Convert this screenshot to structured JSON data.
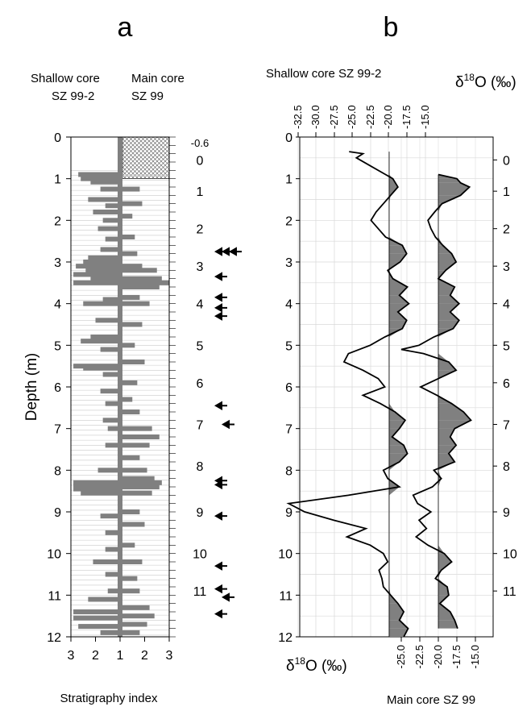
{
  "panel_a": {
    "letter": "a",
    "header_left_1": "Shallow core",
    "header_left_2": "SZ 99-2",
    "header_right_1": "Main core",
    "header_right_2": "SZ 99",
    "ylabel": "Depth (m)",
    "xlabel": "Stratigraphy index"
  },
  "panel_b": {
    "letter": "b",
    "top_title": "Shallow core SZ 99-2",
    "top_unit_delta": "δ",
    "top_unit_sup": "18",
    "top_unit_rest": "O (‰)",
    "bottom_unit_delta": "δ",
    "bottom_unit_sup": "18",
    "bottom_unit_rest": "O (‰)",
    "bottom_title": "Main core SZ 99"
  },
  "chart_data": [
    {
      "type": "bar",
      "title": "",
      "xlabel": "Stratigraphy index",
      "ylabel": "Depth (m)",
      "left_depth_ticks": [
        "0",
        "1",
        "2",
        "3",
        "4",
        "5",
        "6",
        "7",
        "8",
        "9",
        "10",
        "11",
        "12"
      ],
      "right_depth_ticks": [
        "-0.6",
        "0",
        "1",
        "2",
        "3",
        "4",
        "5",
        "6",
        "7",
        "8",
        "9",
        "10",
        "11"
      ],
      "x_ticks": [
        "3",
        "2",
        "1",
        "2",
        "3"
      ],
      "shallow_core_series": {
        "name": "SZ 99-2",
        "depth_m": [
          0.9,
          1.0,
          1.08,
          1.25,
          1.5,
          1.65,
          1.8,
          2.0,
          2.2,
          2.45,
          2.7,
          2.9,
          3.0,
          3.1,
          3.2,
          3.3,
          3.4,
          3.5,
          3.9,
          4.0,
          4.4,
          4.8,
          4.9,
          5.1,
          5.5,
          5.55,
          5.7,
          6.1,
          6.4,
          6.8,
          7.0,
          7.4,
          8.0,
          8.3,
          8.35,
          8.45,
          8.55,
          9.1,
          9.5,
          9.9,
          10.2,
          10.5,
          10.9,
          11.1,
          11.4,
          11.55,
          11.75,
          11.9
        ],
        "index": [
          2.7,
          2.6,
          2.2,
          1.8,
          2.3,
          1.6,
          2.1,
          1.7,
          1.9,
          1.6,
          1.8,
          2.3,
          2.5,
          2.8,
          2.4,
          2.9,
          2.2,
          2.9,
          1.7,
          2.5,
          2.0,
          2.2,
          2.6,
          1.8,
          2.9,
          2.5,
          1.7,
          1.8,
          1.6,
          1.7,
          1.5,
          1.6,
          1.9,
          2.9,
          2.9,
          2.9,
          2.6,
          1.8,
          1.6,
          1.6,
          2.1,
          1.6,
          1.5,
          2.3,
          2.9,
          2.9,
          2.7,
          1.8
        ]
      },
      "main_core_series": {
        "name": "SZ 99",
        "depth_m": [
          1.25,
          1.6,
          1.9,
          2.4,
          2.8,
          3.1,
          3.2,
          3.4,
          3.5,
          3.6,
          3.85,
          4.0,
          4.5,
          5.0,
          5.4,
          5.9,
          6.3,
          6.6,
          7.0,
          7.2,
          7.4,
          7.7,
          8.0,
          8.2,
          8.3,
          8.4,
          8.55,
          9.0,
          9.3,
          9.8,
          10.2,
          10.6,
          10.9,
          11.3,
          11.5,
          11.7,
          11.9
        ],
        "index": [
          1.8,
          1.9,
          1.5,
          1.6,
          1.7,
          1.9,
          2.5,
          2.7,
          3.0,
          2.6,
          1.8,
          2.2,
          1.9,
          1.6,
          2.0,
          1.7,
          1.5,
          1.8,
          2.3,
          2.6,
          2.2,
          1.8,
          2.1,
          2.4,
          2.7,
          2.6,
          2.3,
          1.8,
          2.0,
          1.6,
          1.9,
          1.7,
          1.8,
          2.2,
          2.4,
          2.1,
          1.8
        ]
      },
      "hatched_interval_m": [
        0,
        1.0
      ]
    },
    {
      "type": "line",
      "title": "Shallow core SZ 99-2",
      "xlabel": "δ18O (‰)",
      "ylabel": "Depth (m)",
      "top_x_ticks": [
        "-32.5",
        "-30.0",
        "-27.5",
        "-25.0",
        "-22.5",
        "-20.0",
        "-17.5",
        "-15.0"
      ],
      "bottom_x_ticks": [
        "-25.0",
        "-22.5",
        "-20.0",
        "-17.5",
        "-15.0"
      ],
      "left_depth_ticks": [
        "0",
        "1",
        "2",
        "3",
        "4",
        "5",
        "6",
        "7",
        "8",
        "9",
        "10",
        "11",
        "12"
      ],
      "right_depth_ticks": [
        "0",
        "1",
        "2",
        "3",
        "4",
        "5",
        "6",
        "7",
        "8",
        "9",
        "10",
        "11"
      ],
      "xlim_top": [
        -35,
        -12
      ],
      "xlim_bottom": [
        -30,
        -13.5
      ],
      "ylim": [
        0,
        12
      ],
      "fill_threshold_top": -20.0,
      "fill_threshold_bottom": -20.0,
      "series": [
        {
          "name": "SZ 99-2",
          "depth": [
            0.35,
            0.4,
            0.5,
            0.7,
            0.9,
            1.0,
            1.2,
            1.4,
            1.6,
            1.8,
            2.0,
            2.2,
            2.4,
            2.6,
            2.8,
            3.0,
            3.2,
            3.4,
            3.6,
            3.8,
            4.0,
            4.2,
            4.4,
            4.6,
            4.8,
            5.0,
            5.2,
            5.4,
            5.6,
            5.8,
            6.0,
            6.2,
            6.4,
            6.6,
            6.8,
            7.0,
            7.2,
            7.4,
            7.6,
            7.8,
            8.0,
            8.2,
            8.4,
            8.6,
            8.8,
            9.0,
            9.2,
            9.4,
            9.6,
            9.8,
            10.0,
            10.2,
            10.4,
            10.6,
            10.8,
            11.0,
            11.2,
            11.4,
            11.6,
            11.8,
            12.0
          ],
          "d18O": [
            -25.5,
            -23.6,
            -24.5,
            -22.5,
            -20.5,
            -19.5,
            -18.8,
            -19.8,
            -20.8,
            -21.8,
            -22.5,
            -21.5,
            -20.5,
            -18.2,
            -17.6,
            -18.5,
            -20.2,
            -19.5,
            -17.5,
            -18.6,
            -17.3,
            -18.8,
            -17.6,
            -18.2,
            -20.6,
            -22.6,
            -25.6,
            -26.2,
            -23.6,
            -21.5,
            -20.6,
            -23.6,
            -21.2,
            -19.2,
            -17.8,
            -18.6,
            -19.6,
            -18.0,
            -17.5,
            -18.6,
            -20.8,
            -20.2,
            -18.6,
            -25.6,
            -33.8,
            -31.6,
            -27.6,
            -23.2,
            -25.8,
            -22.6,
            -20.8,
            -20.2,
            -21.4,
            -21.0,
            -20.8,
            -19.8,
            -18.8,
            -18.0,
            -18.6,
            -17.4,
            -18.0
          ]
        },
        {
          "name": "SZ 99",
          "depth": [
            0.9,
            1.0,
            1.1,
            1.2,
            1.4,
            1.6,
            1.8,
            2.0,
            2.2,
            2.4,
            2.6,
            2.8,
            3.0,
            3.2,
            3.4,
            3.6,
            3.8,
            4.0,
            4.2,
            4.4,
            4.6,
            4.8,
            5.0,
            5.1,
            5.2,
            5.4,
            5.6,
            5.8,
            6.0,
            6.2,
            6.4,
            6.6,
            6.8,
            7.0,
            7.2,
            7.4,
            7.6,
            7.8,
            8.0,
            8.2,
            8.4,
            8.6,
            8.8,
            9.0,
            9.2,
            9.4,
            9.6,
            9.8,
            10.0,
            10.2,
            10.4,
            10.6,
            10.8,
            11.0,
            11.2,
            11.4,
            11.6,
            11.8
          ],
          "d18O": [
            -20.0,
            -17.5,
            -17.0,
            -15.8,
            -17.0,
            -19.5,
            -20.5,
            -21.4,
            -21.0,
            -20.4,
            -19.4,
            -18.2,
            -17.6,
            -19.0,
            -20.0,
            -17.8,
            -18.4,
            -17.2,
            -18.4,
            -17.2,
            -18.0,
            -20.6,
            -22.6,
            -25.0,
            -22.0,
            -18.6,
            -17.6,
            -20.0,
            -22.4,
            -20.2,
            -18.2,
            -16.6,
            -15.6,
            -17.8,
            -18.4,
            -17.6,
            -18.6,
            -17.8,
            -20.6,
            -19.6,
            -20.8,
            -23.4,
            -22.8,
            -21.0,
            -22.6,
            -21.6,
            -23.0,
            -21.4,
            -19.2,
            -18.2,
            -19.6,
            -20.4,
            -18.8,
            -18.6,
            -19.8,
            -18.4,
            -17.8,
            -17.4
          ]
        }
      ],
      "arrows_depth_m": [
        2.75,
        2.75,
        2.75,
        3.35,
        3.85,
        4.1,
        4.3,
        6.45,
        6.9,
        8.25,
        8.35,
        9.1,
        10.3,
        10.85,
        11.05,
        11.45
      ]
    }
  ]
}
